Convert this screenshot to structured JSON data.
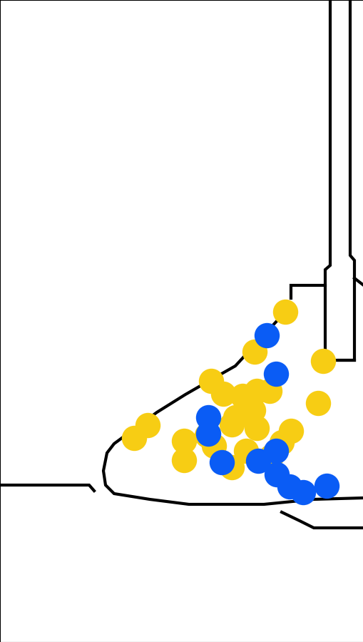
{
  "chart_data": {
    "type": "scatter",
    "xlim": [
      0,
      510
    ],
    "ylim": [
      900,
      0
    ],
    "tick_labels": false,
    "series": [
      {
        "color": "#f7cd14",
        "marker": "circle",
        "x": [
          400,
          357,
          453,
          296,
          313,
          340,
          360,
          378,
          446,
          350,
          330,
          355,
          325,
          360,
          408,
          207,
          188,
          258,
          290,
          258,
          345,
          325,
          395,
          380,
          300
        ],
        "values": [
          437,
          493,
          506,
          534,
          552,
          555,
          548,
          548,
          565,
          570,
          585,
          575,
          595,
          600,
          604,
          596,
          614,
          618,
          610,
          645,
          632,
          655,
          620,
          640,
          625
        ]
      },
      {
        "color": "#0a5cf5",
        "marker": "circle",
        "x": [
          374,
          387,
          292,
          292,
          311,
          362,
          387,
          388,
          406,
          425,
          458
        ],
        "values": [
          470,
          524,
          585,
          608,
          648,
          646,
          632,
          665,
          682,
          690,
          681
        ]
      }
    ]
  }
}
